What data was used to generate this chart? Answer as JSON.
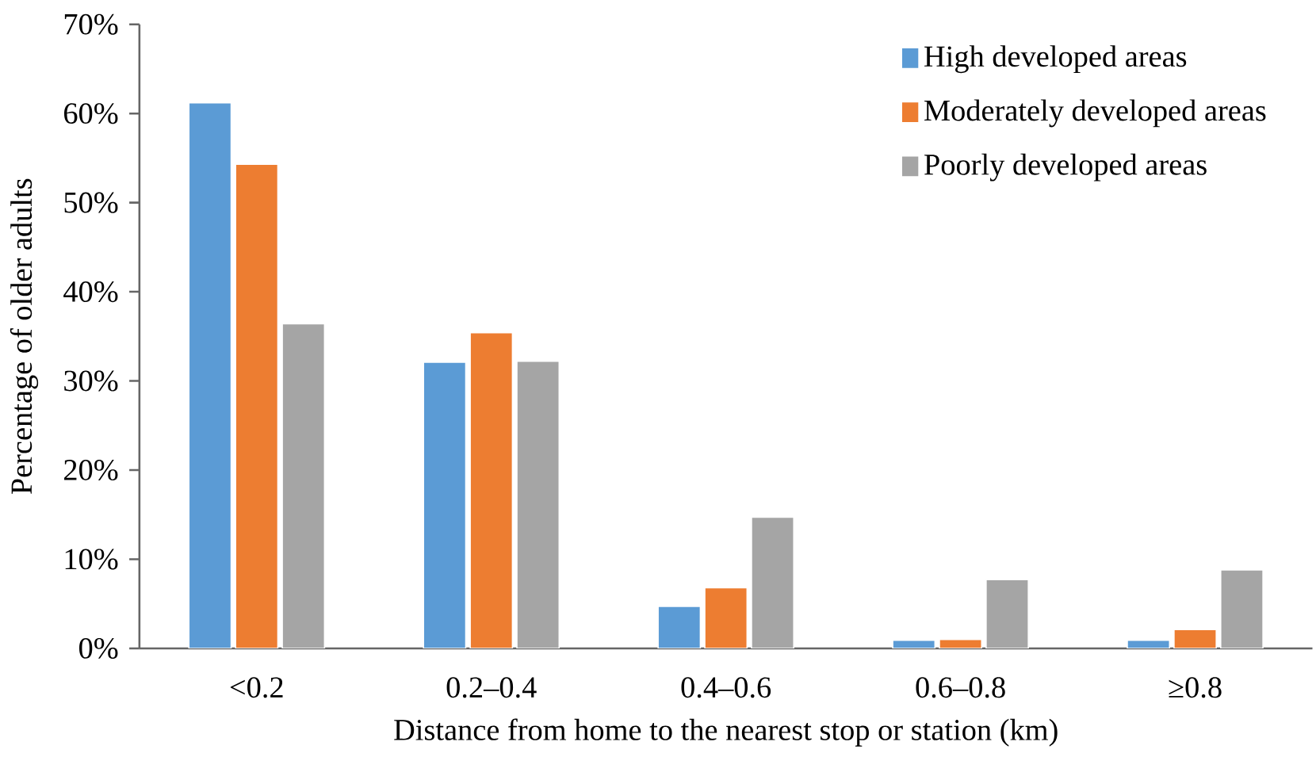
{
  "chart_data": {
    "type": "bar",
    "xlabel": "Distance from home to the nearest stop or station (km)",
    "ylabel": "Percentage of older adults",
    "categories": [
      "<0.2",
      "0.2–0.4",
      "0.4–0.6",
      "0.6–0.8",
      "≥0.8"
    ],
    "series": [
      {
        "name": "High developed areas",
        "color": "#5b9bd5",
        "values": [
          61.2,
          32.1,
          4.7,
          0.9,
          0.9
        ]
      },
      {
        "name": "Moderately developed areas",
        "color": "#ed7d31",
        "values": [
          54.3,
          35.4,
          6.8,
          1.0,
          2.1
        ]
      },
      {
        "name": "Poorly developed areas",
        "color": "#a5a5a5",
        "values": [
          36.4,
          32.2,
          14.7,
          7.7,
          8.8
        ]
      }
    ],
    "ylim": [
      0,
      70
    ],
    "yticks": [
      {
        "value": 0,
        "label": "0%"
      },
      {
        "value": 10,
        "label": "10%"
      },
      {
        "value": 20,
        "label": "20%"
      },
      {
        "value": 30,
        "label": "30%"
      },
      {
        "value": 40,
        "label": "40%"
      },
      {
        "value": 50,
        "label": "50%"
      },
      {
        "value": 60,
        "label": "60%"
      },
      {
        "value": 70,
        "label": "70%"
      }
    ],
    "legend": "top right"
  }
}
